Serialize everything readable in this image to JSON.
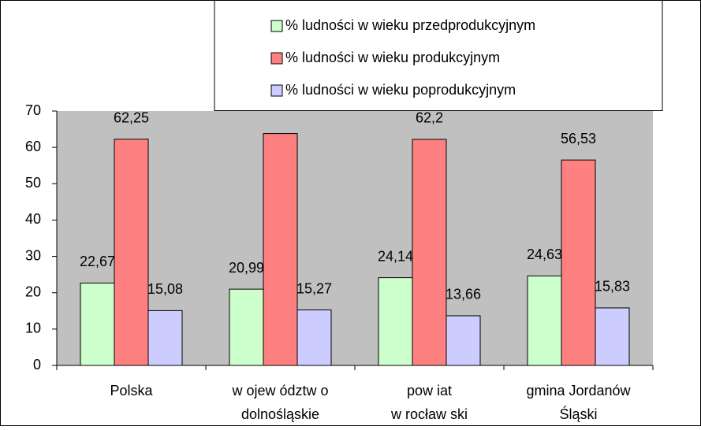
{
  "chart_data": {
    "type": "bar",
    "categories": [
      [
        "Polska"
      ],
      [
        "w ojew ództw o",
        "dolnośląskie"
      ],
      [
        "pow iat",
        "w rocław ski"
      ],
      [
        "gmina Jordanów",
        "Śląski"
      ]
    ],
    "series": [
      {
        "name": "% ludności w wieku przedprodukcyjnym",
        "color": "#ccffcc",
        "values": [
          22.67,
          20.99,
          24.14,
          24.63
        ],
        "value_labels": [
          "22,67",
          "20,99",
          "24,14",
          "24,63"
        ]
      },
      {
        "name": "% ludności w wieku produkcyjnym",
        "color": "#ff8080",
        "values": [
          62.25,
          63.8,
          62.2,
          56.53
        ],
        "value_labels": [
          "62,25",
          null,
          "62,2",
          "56,53"
        ]
      },
      {
        "name": "% ludności w wieku poprodukcyjnym",
        "color": "#ccccff",
        "values": [
          15.08,
          15.27,
          13.66,
          15.83
        ],
        "value_labels": [
          "15,08",
          "15,27",
          "13,66",
          "15,83"
        ]
      }
    ],
    "ylim": [
      0,
      70
    ],
    "yticks": [
      0,
      10,
      20,
      30,
      40,
      50,
      60,
      70
    ],
    "legend": "top-right"
  }
}
